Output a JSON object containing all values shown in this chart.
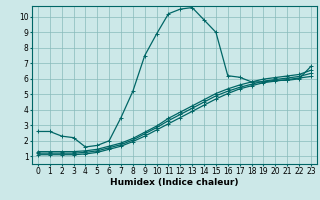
{
  "title": "",
  "xlabel": "Humidex (Indice chaleur)",
  "ylabel": "",
  "bg_color": "#cce8e8",
  "grid_color": "#88bbbb",
  "line_color": "#006666",
  "xlim": [
    -0.5,
    23.5
  ],
  "ylim": [
    0.5,
    10.7
  ],
  "xticks": [
    0,
    1,
    2,
    3,
    4,
    5,
    6,
    7,
    8,
    9,
    10,
    11,
    12,
    13,
    14,
    15,
    16,
    17,
    18,
    19,
    20,
    21,
    22,
    23
  ],
  "yticks": [
    1,
    2,
    3,
    4,
    5,
    6,
    7,
    8,
    9,
    10
  ],
  "line1_x": [
    0,
    1,
    2,
    3,
    4,
    5,
    6,
    7,
    8,
    9,
    10,
    11,
    12,
    13,
    14,
    15,
    16,
    17,
    18,
    19,
    20,
    21,
    22,
    23
  ],
  "line1_y": [
    2.6,
    2.6,
    2.3,
    2.2,
    1.6,
    1.7,
    2.0,
    3.5,
    5.2,
    7.5,
    8.9,
    10.2,
    10.5,
    10.6,
    9.8,
    9.0,
    6.2,
    6.1,
    5.8,
    5.8,
    5.9,
    5.9,
    6.0,
    6.8
  ],
  "line2_x": [
    0,
    1,
    2,
    3,
    4,
    5,
    6,
    7,
    8,
    9,
    10,
    11,
    12,
    13,
    14,
    15,
    16,
    17,
    18,
    19,
    20,
    21,
    22,
    23
  ],
  "line2_y": [
    1.1,
    1.1,
    1.1,
    1.1,
    1.15,
    1.25,
    1.45,
    1.65,
    1.95,
    2.3,
    2.7,
    3.1,
    3.5,
    3.9,
    4.3,
    4.7,
    5.05,
    5.35,
    5.55,
    5.75,
    5.85,
    5.95,
    6.05,
    6.15
  ],
  "line3_x": [
    0,
    1,
    2,
    3,
    4,
    5,
    6,
    7,
    8,
    9,
    10,
    11,
    12,
    13,
    14,
    15,
    16,
    17,
    18,
    19,
    20,
    21,
    22,
    23
  ],
  "line3_y": [
    1.2,
    1.2,
    1.2,
    1.2,
    1.25,
    1.35,
    1.55,
    1.75,
    2.05,
    2.45,
    2.85,
    3.3,
    3.7,
    4.1,
    4.5,
    4.9,
    5.2,
    5.45,
    5.65,
    5.85,
    5.95,
    6.05,
    6.15,
    6.35
  ],
  "line4_x": [
    0,
    1,
    2,
    3,
    4,
    5,
    6,
    7,
    8,
    9,
    10,
    11,
    12,
    13,
    14,
    15,
    16,
    17,
    18,
    19,
    20,
    21,
    22,
    23
  ],
  "line4_y": [
    1.3,
    1.3,
    1.3,
    1.3,
    1.35,
    1.45,
    1.65,
    1.85,
    2.15,
    2.55,
    2.95,
    3.45,
    3.85,
    4.25,
    4.65,
    5.05,
    5.35,
    5.6,
    5.8,
    5.98,
    6.08,
    6.18,
    6.28,
    6.55
  ],
  "marker_style": "+",
  "marker_size": 3,
  "line_width": 0.9,
  "font_size_tick": 5.5,
  "font_size_label": 6.5
}
